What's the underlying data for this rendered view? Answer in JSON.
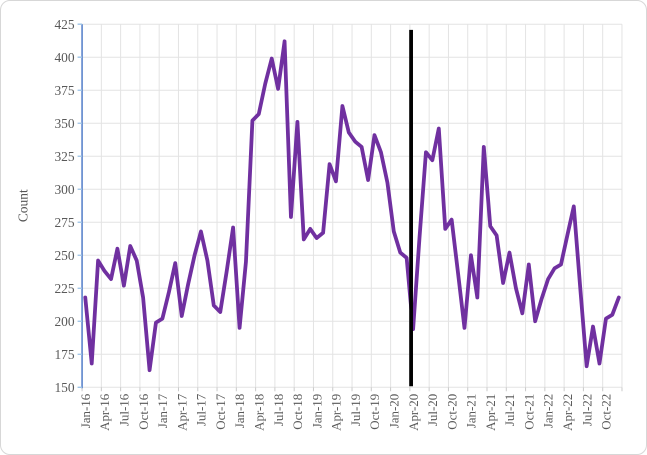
{
  "chart_data": {
    "type": "line",
    "title": "",
    "xlabel": "",
    "ylabel": "Count",
    "ylim": [
      150,
      425
    ],
    "ytick_step": 25,
    "yticks": [
      150,
      175,
      200,
      225,
      250,
      275,
      300,
      325,
      350,
      375,
      400,
      425
    ],
    "grid": true,
    "legend": "none",
    "x_ticks_rotated": true,
    "x_axis_tick_labels": [
      "Jan-16",
      "Apr-16",
      "Jul-16",
      "Oct-16",
      "Jan-17",
      "Apr-17",
      "Jul-17",
      "Oct-17",
      "Jan-18",
      "Apr-18",
      "Jul-18",
      "Oct-18",
      "Jan-19",
      "Apr-19",
      "Jul-19",
      "Oct-19",
      "Jan-20",
      "Apr-20",
      "Jul-20",
      "Oct-20",
      "Jan-21",
      "Apr-21",
      "Jul-21",
      "Oct-21",
      "Jan-22",
      "Apr-22",
      "Jul-22",
      "Oct-22"
    ],
    "categories": [
      "Jan-16",
      "Feb-16",
      "Mar-16",
      "Apr-16",
      "May-16",
      "Jun-16",
      "Jul-16",
      "Aug-16",
      "Sep-16",
      "Oct-16",
      "Nov-16",
      "Dec-16",
      "Jan-17",
      "Feb-17",
      "Mar-17",
      "Apr-17",
      "May-17",
      "Jun-17",
      "Jul-17",
      "Aug-17",
      "Sep-17",
      "Oct-17",
      "Nov-17",
      "Dec-17",
      "Jan-18",
      "Feb-18",
      "Mar-18",
      "Apr-18",
      "May-18",
      "Jun-18",
      "Jul-18",
      "Aug-18",
      "Sep-18",
      "Oct-18",
      "Nov-18",
      "Dec-18",
      "Jan-19",
      "Feb-19",
      "Mar-19",
      "Apr-19",
      "May-19",
      "Jun-19",
      "Jul-19",
      "Aug-19",
      "Sep-19",
      "Oct-19",
      "Nov-19",
      "Dec-19",
      "Jan-20",
      "Feb-20",
      "Mar-20",
      "Apr-20",
      "May-20",
      "Jun-20",
      "Jul-20",
      "Aug-20",
      "Sep-20",
      "Oct-20",
      "Nov-20",
      "Dec-20",
      "Jan-21",
      "Feb-21",
      "Mar-21",
      "Apr-21",
      "May-21",
      "Jun-21",
      "Jul-21",
      "Aug-21",
      "Sep-21",
      "Oct-21",
      "Nov-21",
      "Dec-21",
      "Jan-22",
      "Feb-22",
      "Mar-22",
      "Apr-22",
      "May-22",
      "Jun-22",
      "Jul-22",
      "Aug-22",
      "Sep-22",
      "Oct-22",
      "Nov-22",
      "Dec-22"
    ],
    "series": [
      {
        "name": "Count",
        "color": "#7030A0",
        "values": [
          218,
          168,
          246,
          238,
          232,
          255,
          227,
          257,
          246,
          218,
          163,
          199,
          202,
          222,
          244,
          204,
          228,
          250,
          268,
          246,
          212,
          207,
          238,
          271,
          195,
          245,
          352,
          357,
          380,
          399,
          376,
          412,
          279,
          351,
          262,
          270,
          263,
          267,
          319,
          306,
          363,
          343,
          336,
          332,
          307,
          341,
          328,
          305,
          268,
          252,
          248,
          194,
          263,
          328,
          322,
          346,
          270,
          277,
          236,
          195,
          250,
          218,
          332,
          272,
          265,
          229,
          252,
          225,
          206,
          243,
          200,
          217,
          232,
          240,
          243,
          265,
          287,
          226,
          166,
          196,
          168,
          202,
          205,
          218
        ]
      }
    ],
    "annotations": [
      {
        "type": "vertical-line",
        "at_category": "Apr-20",
        "color": "#000000"
      }
    ]
  },
  "colors": {
    "line": "#7030A0",
    "y_axis_line": "#4472C4",
    "y_axis_tick": "#9DC3E6",
    "gridline": "#E3E3E3",
    "x_tick_mark": "#C9C9C9",
    "tick_label": "#595959",
    "axis_title": "#555555",
    "annotation_line": "#000000",
    "background": "#FFFFFF",
    "frame_border": "#D7D7D7"
  }
}
